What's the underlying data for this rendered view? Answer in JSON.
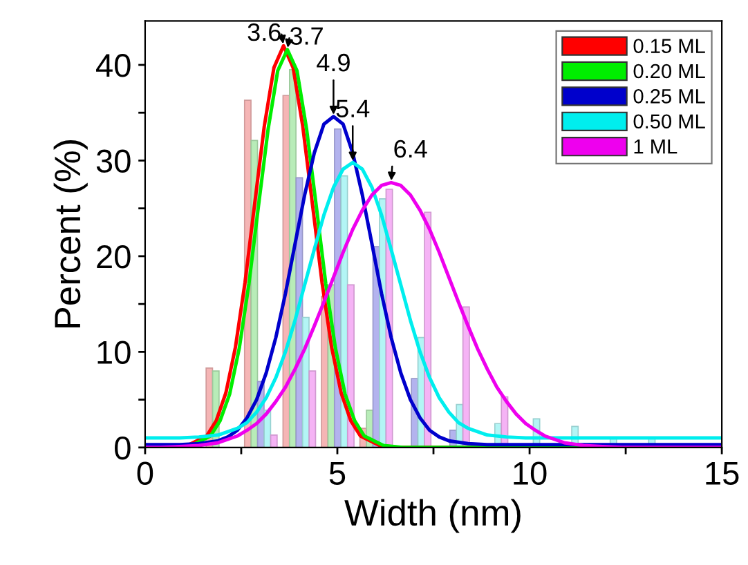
{
  "chart_data": {
    "type": "line",
    "xlabel": "Width (nm)",
    "ylabel": "Percent (%)",
    "xlim": [
      0,
      15
    ],
    "ylim": [
      0,
      44.6
    ],
    "xticks": [
      0,
      {
        "value": 2.5,
        "label": null
      },
      5,
      {
        "value": 7.5,
        "label": null
      },
      10,
      {
        "value": 12.5,
        "label": null
      },
      15
    ],
    "yticks": [
      0,
      {
        "value": 5,
        "label": null
      },
      10,
      {
        "value": 15,
        "label": null
      },
      20,
      {
        "value": 25,
        "label": null
      },
      30,
      {
        "value": 35,
        "label": null
      },
      40
    ],
    "legend": "top right",
    "series": [
      {
        "type": "bar",
        "color": "#f5b5b5",
        "x": [
          1.67,
          2.67,
          3.67,
          4.67,
          5.67
        ],
        "values": [
          8.3,
          36.3,
          36.8,
          15.8,
          2.0
        ]
      },
      {
        "type": "bar",
        "color": "#b8ecb8",
        "x": [
          1.84,
          2.84,
          3.84,
          4.84,
          5.84
        ],
        "values": [
          8.0,
          32.1,
          39.5,
          17.0,
          3.9
        ]
      },
      {
        "type": "bar",
        "color": "#b3b3ee",
        "x": [
          3.01,
          4.01,
          5.01,
          6.01,
          7.01,
          8.01
        ],
        "values": [
          6.9,
          28.2,
          33.3,
          21.0,
          7.2,
          1.8
        ]
      },
      {
        "type": "bar",
        "color": "#b3f5f5",
        "x": [
          3.18,
          4.18,
          5.18,
          6.18,
          7.18,
          8.18,
          9.18,
          10.18,
          11.18,
          12.18,
          13.18
        ],
        "values": [
          3.9,
          13.6,
          28.4,
          26.0,
          11.5,
          4.5,
          2.5,
          3.0,
          2.2,
          1.0,
          1.0
        ]
      },
      {
        "type": "bar",
        "color": "#f5b3f5",
        "x": [
          3.35,
          4.35,
          5.35,
          6.35,
          7.35,
          8.35,
          9.35
        ],
        "values": [
          1.3,
          8.0,
          17.0,
          27.0,
          24.6,
          14.7,
          5.3
        ]
      },
      {
        "name": "0.15 ML",
        "color": "#ff0000",
        "x": [
          0,
          0.6,
          1.1,
          1.6,
          1.85,
          2.1,
          2.35,
          2.6,
          2.85,
          3.1,
          3.35,
          3.6,
          3.85,
          4.1,
          4.35,
          4.6,
          4.85,
          5.1,
          5.35,
          5.6,
          6.1,
          6.6,
          15
        ],
        "values": [
          0,
          0,
          0.2,
          1.2,
          2.8,
          5.7,
          10.5,
          17.3,
          25.5,
          33.6,
          39.7,
          42,
          39.7,
          33.6,
          25.5,
          17.3,
          10.5,
          5.7,
          2.8,
          1.2,
          0.2,
          0,
          0
        ]
      },
      {
        "name": "0.20 ML",
        "color": "#00ee00",
        "x": [
          0,
          0.7,
          1.2,
          1.7,
          1.95,
          2.2,
          2.45,
          2.7,
          2.95,
          3.2,
          3.45,
          3.7,
          3.95,
          4.2,
          4.45,
          4.7,
          4.95,
          5.2,
          5.45,
          5.7,
          6.2,
          6.7,
          15
        ],
        "values": [
          0,
          0,
          0.2,
          1.2,
          2.8,
          5.6,
          10.4,
          17.1,
          25.3,
          33.3,
          39.4,
          41.6,
          39.4,
          33.3,
          25.3,
          17.1,
          10.4,
          5.6,
          2.8,
          1.2,
          0.2,
          0,
          0
        ]
      },
      {
        "name": "0.25 ML",
        "color": "#0000cc",
        "x": [
          0,
          0.9,
          1.4,
          1.9,
          2.15,
          2.4,
          2.65,
          2.9,
          3.15,
          3.4,
          3.65,
          3.9,
          4.15,
          4.4,
          4.65,
          4.9,
          5.15,
          5.4,
          5.65,
          5.9,
          6.15,
          6.4,
          6.65,
          6.9,
          7.15,
          7.4,
          7.65,
          7.9,
          8.4,
          8.9,
          15
        ],
        "values": [
          0.3,
          0.3,
          0.4,
          0.7,
          1.1,
          1.8,
          3.1,
          5.0,
          7.8,
          11.5,
          16.1,
          21.3,
          26.4,
          30.8,
          33.8,
          34.6,
          33.8,
          30.8,
          26.4,
          21.3,
          16.1,
          11.5,
          7.8,
          5.0,
          3.1,
          1.8,
          1.1,
          0.7,
          0.4,
          0.3,
          0.3
        ]
      },
      {
        "name": "0.50 ML",
        "color": "#00eeee",
        "x": [
          0,
          0.9,
          1.4,
          1.9,
          2.4,
          2.65,
          2.9,
          3.15,
          3.4,
          3.65,
          3.9,
          4.15,
          4.4,
          4.65,
          4.9,
          5.15,
          5.4,
          5.65,
          5.9,
          6.15,
          6.4,
          6.65,
          6.9,
          7.15,
          7.4,
          7.65,
          7.9,
          8.15,
          8.4,
          8.9,
          9.4,
          9.9,
          15
        ],
        "values": [
          1.0,
          1.0,
          1.1,
          1.3,
          2.0,
          2.6,
          3.7,
          5.2,
          7.3,
          10.0,
          13.3,
          17.0,
          20.7,
          24.3,
          27.2,
          29.1,
          29.8,
          29.1,
          27.2,
          24.3,
          20.7,
          17.0,
          13.3,
          10.0,
          7.3,
          5.2,
          3.7,
          2.6,
          2.0,
          1.3,
          1.1,
          1.0,
          1.0
        ]
      },
      {
        "name": "1 ML",
        "color": "#ee00ee",
        "x": [
          0,
          0.4,
          0.9,
          1.4,
          1.9,
          2.4,
          2.65,
          2.9,
          3.15,
          3.4,
          3.65,
          3.9,
          4.15,
          4.4,
          4.65,
          4.9,
          5.15,
          5.4,
          5.65,
          5.9,
          6.15,
          6.4,
          6.65,
          6.9,
          7.15,
          7.4,
          7.65,
          7.9,
          8.15,
          8.4,
          8.65,
          8.9,
          9.15,
          9.4,
          9.65,
          9.9,
          10.15,
          10.4,
          10.9,
          11.4,
          11.9,
          12.4,
          15
        ],
        "values": [
          0,
          0,
          0.1,
          0.2,
          0.5,
          1.2,
          1.8,
          2.5,
          3.5,
          4.8,
          6.3,
          8.2,
          10.3,
          12.7,
          15.2,
          17.8,
          20.4,
          22.8,
          24.8,
          26.4,
          27.4,
          27.7,
          27.4,
          26.4,
          24.8,
          22.8,
          20.4,
          17.8,
          15.2,
          12.7,
          10.3,
          8.2,
          6.3,
          4.8,
          3.5,
          2.5,
          1.8,
          1.2,
          0.5,
          0.2,
          0.1,
          0,
          0
        ]
      }
    ],
    "annotations": [
      {
        "text": "3.6",
        "x": 3.6,
        "y": 42
      },
      {
        "text": "3.7",
        "x": 3.7,
        "y": 41.6
      },
      {
        "text": "4.9",
        "x": 4.9,
        "y": 34.6
      },
      {
        "text": "5.4",
        "x": 5.4,
        "y": 29.8
      },
      {
        "text": "6.4",
        "x": 6.4,
        "y": 27.7
      }
    ]
  }
}
